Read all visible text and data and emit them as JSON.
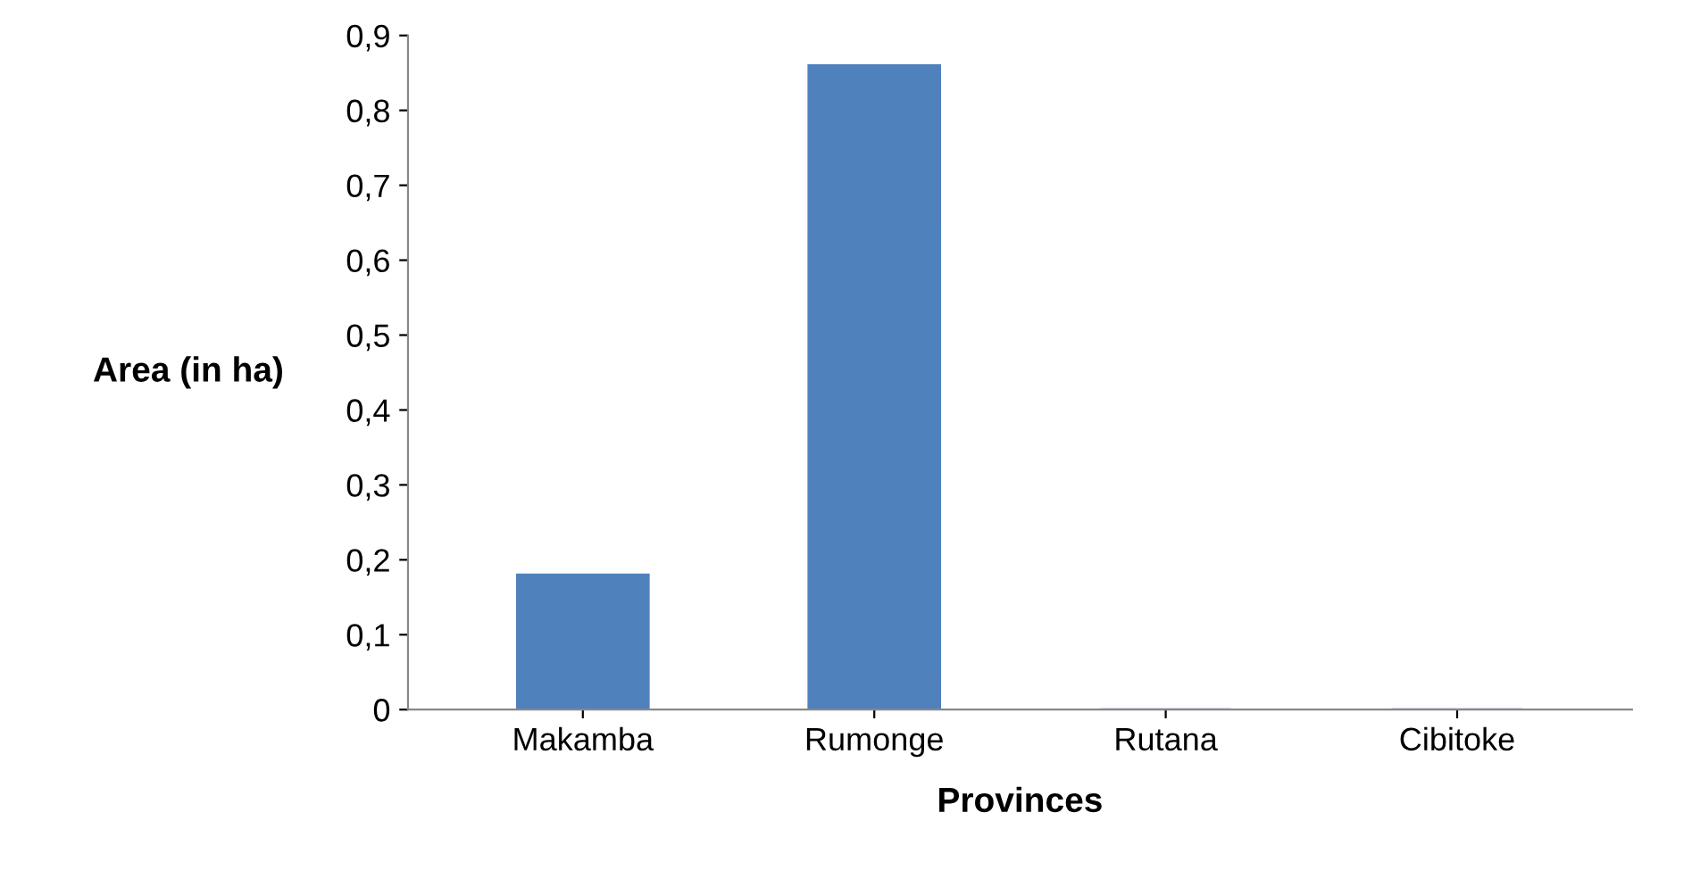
{
  "chart_data": {
    "type": "bar",
    "xlabel": "Provinces",
    "ylabel": "Area (in ha)",
    "categories": [
      "Makamba",
      "Rumonge",
      "Rutana",
      "Cibitoke"
    ],
    "values": [
      0.18,
      0.86,
      0,
      0
    ],
    "color": "#4f81bd",
    "ylim": [
      0,
      0.9
    ],
    "yticks": [
      {
        "value": 0,
        "label": "0"
      },
      {
        "value": 0.1,
        "label": "0,1"
      },
      {
        "value": 0.2,
        "label": "0,2"
      },
      {
        "value": 0.3,
        "label": "0,3"
      },
      {
        "value": 0.4,
        "label": "0,4"
      },
      {
        "value": 0.5,
        "label": "0,5"
      },
      {
        "value": 0.6,
        "label": "0,6"
      },
      {
        "value": 0.7,
        "label": "0,7"
      },
      {
        "value": 0.8,
        "label": "0,8"
      },
      {
        "value": 0.9,
        "label": "0,9"
      }
    ],
    "grid": false
  }
}
